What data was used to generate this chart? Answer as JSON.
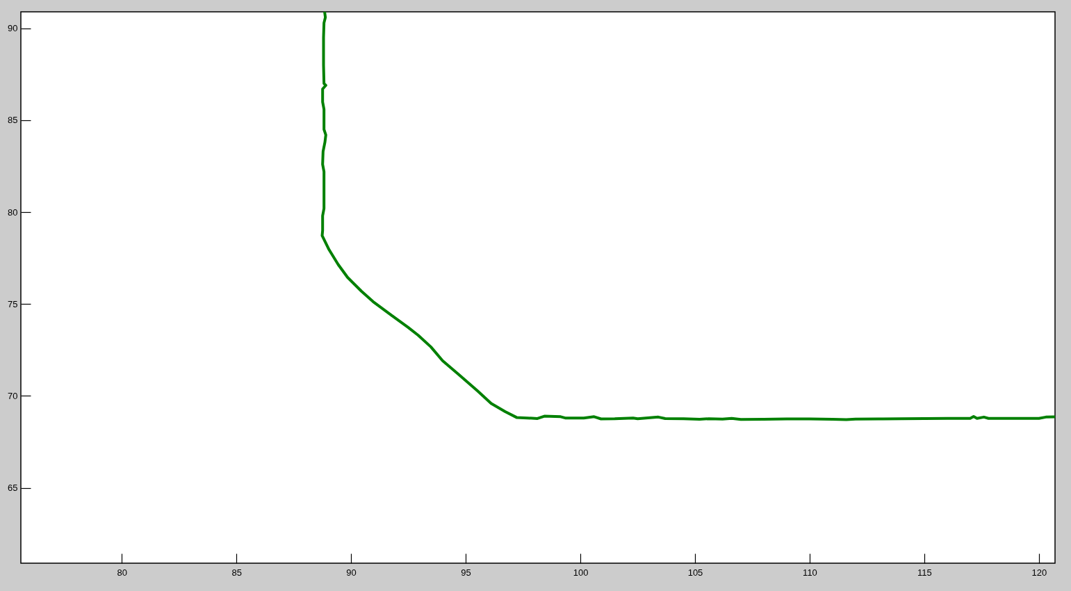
{
  "chart_data": {
    "type": "line",
    "x": [
      88.85,
      88.88,
      88.82,
      88.8,
      88.8,
      88.82,
      88.9,
      88.76,
      88.76,
      88.82,
      88.82,
      88.9,
      88.86,
      88.78,
      88.76,
      88.82,
      88.82,
      88.76,
      88.76,
      88.74,
      89.04,
      89.44,
      89.85,
      90.45,
      90.96,
      91.77,
      92.48,
      92.93,
      93.48,
      93.99,
      94.7,
      95.51,
      96.11,
      96.72,
      97.22,
      98.13,
      98.43,
      99.14,
      99.34,
      100.15,
      100.6,
      100.9,
      101.5,
      102.3,
      102.5,
      103.4,
      103.7,
      104.5,
      105.2,
      105.6,
      106.2,
      106.6,
      107,
      108,
      109,
      110,
      111,
      111.6,
      112,
      113,
      114,
      115,
      116,
      117,
      117.15,
      117.3,
      117.6,
      117.8,
      119,
      120,
      120.3,
      120.7
    ],
    "series": [
      {
        "color": "#008000",
        "values": [
          90.87,
          90.6,
          90.3,
          89.5,
          88,
          87,
          86.9,
          86.7,
          86,
          85.6,
          84.5,
          84.2,
          83.8,
          83.3,
          82.6,
          82.2,
          80.2,
          79.8,
          79,
          78.72,
          77.96,
          77.15,
          76.45,
          75.7,
          75.13,
          74.38,
          73.74,
          73.3,
          72.67,
          71.92,
          71.16,
          70.28,
          69.59,
          69.15,
          68.83,
          68.77,
          68.9,
          68.87,
          68.8,
          68.8,
          68.87,
          68.75,
          68.76,
          68.8,
          68.76,
          68.85,
          68.77,
          68.76,
          68.73,
          68.76,
          68.74,
          68.78,
          68.72,
          68.73,
          68.75,
          68.75,
          68.73,
          68.71,
          68.74,
          68.75,
          68.76,
          68.77,
          68.78,
          68.78,
          68.88,
          68.78,
          68.85,
          68.78,
          68.78,
          68.78,
          68.85,
          68.86
        ]
      }
    ],
    "xlim": [
      75.6,
      120.7
    ],
    "ylim": [
      60.9,
      90.9
    ],
    "xticks": [
      80,
      85,
      90,
      95,
      100,
      105,
      110,
      115,
      120
    ],
    "yticks": [
      65,
      70,
      75,
      80,
      85,
      90
    ]
  }
}
